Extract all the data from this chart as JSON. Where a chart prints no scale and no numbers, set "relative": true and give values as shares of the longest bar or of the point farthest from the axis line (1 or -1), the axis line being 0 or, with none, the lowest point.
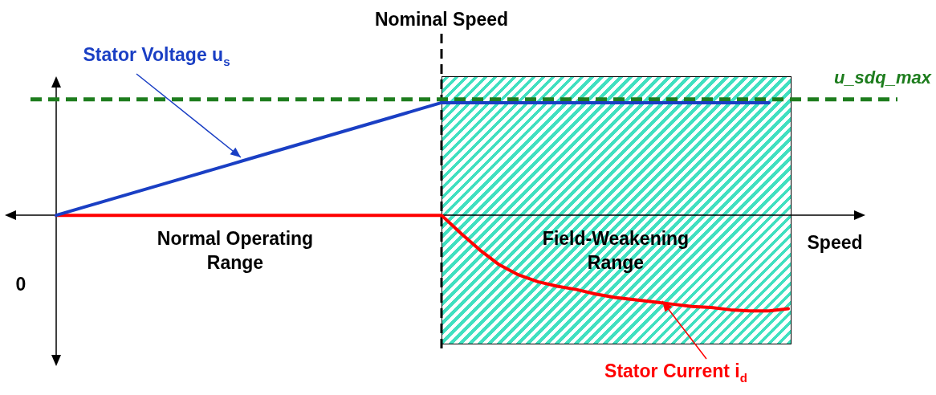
{
  "chart_data": {
    "type": "line",
    "relative": true,
    "categories": [
      null,
      null,
      null,
      null,
      null,
      null,
      null,
      null,
      null,
      null,
      null,
      null,
      null,
      null,
      null,
      null,
      null,
      null,
      null,
      null,
      null,
      null,
      null,
      null,
      null,
      null,
      null,
      null,
      null,
      null,
      null,
      null,
      null,
      null,
      null,
      null,
      null,
      null,
      null
    ],
    "series": [
      {
        "color": "#1a3fc4",
        "values": [
          0,
          0.05,
          0.1,
          0.15,
          0.2,
          0.25,
          0.3,
          0.35,
          0.4,
          0.45,
          0.5,
          0.55,
          0.6,
          0.65,
          0.7,
          0.75,
          0.8,
          0.85,
          0.9,
          0.95,
          1,
          1,
          1,
          1,
          1,
          1,
          1,
          1,
          1,
          1,
          1,
          1,
          1,
          1,
          1,
          1,
          1,
          1,
          null
        ]
      },
      {
        "color": "#ff0000",
        "values": [
          0,
          0,
          0,
          0,
          0,
          0,
          0,
          0,
          0,
          0,
          0,
          0,
          0,
          0,
          0,
          0,
          0,
          0,
          0,
          0,
          0,
          -0.16,
          -0.31,
          -0.44,
          -0.53,
          -0.59,
          -0.63,
          -0.66,
          -0.7,
          -0.73,
          -0.75,
          -0.77,
          -0.79,
          -0.81,
          -0.82,
          -0.84,
          -0.85,
          -0.85,
          -0.83
        ]
      }
    ],
    "ref_lines": [
      {
        "axis": "y",
        "value": 1.03,
        "label": "u_sdq_max",
        "color": "#1e7d1e",
        "line_style": "dashed"
      }
    ],
    "annotations": [
      "Stator Voltage u$_{s}$",
      "Stator Current i$_{d}$",
      "Normal Operating Range",
      "Field-Weakening Range",
      "Speed",
      "0",
      "Nominal Speed"
    ],
    "legend": false,
    "marker": "none",
    "line_style": "solid"
  }
}
